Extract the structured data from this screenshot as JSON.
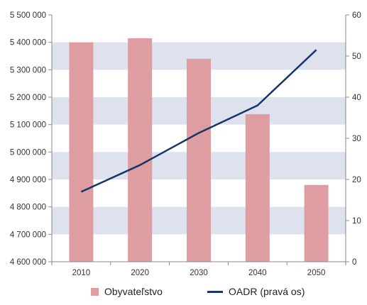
{
  "chart_data": {
    "type": "bar",
    "categories": [
      "2010",
      "2020",
      "2030",
      "2040",
      "2050"
    ],
    "series": [
      {
        "name": "Obyvateľstvo",
        "type": "bar",
        "axis": "left",
        "color": "#dd9da1",
        "values": [
          5400000,
          5415000,
          5340000,
          5138000,
          4880000
        ]
      },
      {
        "name": "OADR (pravá os)",
        "type": "line",
        "axis": "right",
        "color": "#17346b",
        "values": [
          17.0,
          23.5,
          31.3,
          38.0,
          51.5
        ]
      }
    ],
    "y_left": {
      "min": 4600000,
      "max": 5500000,
      "step": 100000,
      "tick_labels": [
        "4 600 000",
        "4 700 000",
        "4 800 000",
        "4 900 000",
        "5 000 000",
        "5 100 000",
        "5 200 000",
        "5 300 000",
        "5 400 000",
        "5 500 000"
      ]
    },
    "y_right": {
      "min": 0,
      "max": 60,
      "step": 10,
      "tick_labels": [
        "0",
        "10",
        "20",
        "30",
        "40",
        "50",
        "60"
      ]
    },
    "grid": "alternating horizontal bands",
    "band_color": "#dde2ee",
    "legend": "bottom"
  }
}
